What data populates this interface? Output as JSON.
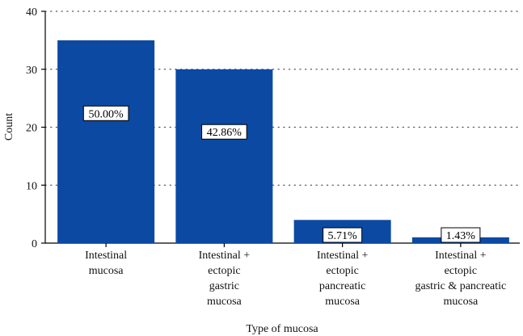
{
  "chart_data": {
    "type": "bar",
    "title": "",
    "xlabel": "Type of mucosa",
    "ylabel": "Count",
    "ylim": [
      0,
      40
    ],
    "yticks": [
      "0",
      "10",
      "20",
      "30",
      "40"
    ],
    "grid": "horizontal dotted",
    "categories": [
      [
        "Intestinal",
        "mucosa"
      ],
      [
        "Intestinal +",
        "ectopic",
        "gastric",
        "mucosa"
      ],
      [
        "Intestinal +",
        "ectopic",
        "pancreatic",
        "mucosa"
      ],
      [
        "Intestinal +",
        "ectopic",
        "gastric & pancreatic",
        "mucosa"
      ]
    ],
    "values": [
      35,
      30,
      4,
      1
    ],
    "data_labels": [
      "50.00%",
      "42.86%",
      "5.71%",
      "1.43%"
    ],
    "bar_color": "#0b49a3"
  }
}
